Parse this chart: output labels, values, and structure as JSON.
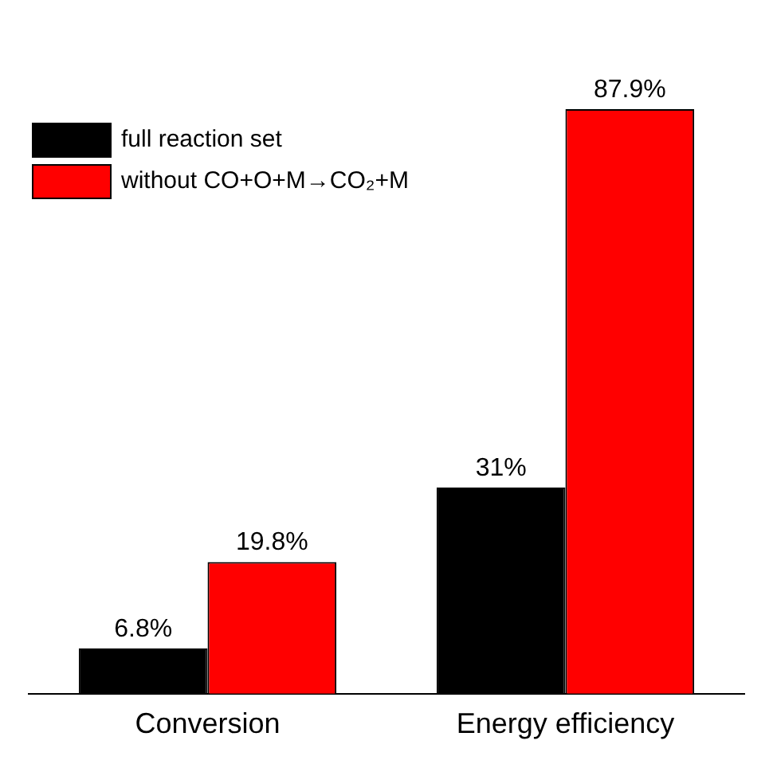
{
  "chart_data": {
    "type": "bar",
    "categories": [
      "Conversion",
      "Energy efficiency"
    ],
    "series": [
      {
        "name": "full reaction set",
        "color": "#000000",
        "values": [
          6.8,
          31
        ],
        "value_labels": [
          "6.8%",
          "31%"
        ]
      },
      {
        "name": "without CO+O+M→CO₂+M",
        "color": "#ff0000",
        "values": [
          19.8,
          87.9
        ],
        "value_labels": [
          "19.8%",
          "87.9%"
        ]
      }
    ],
    "legend": "top left"
  }
}
